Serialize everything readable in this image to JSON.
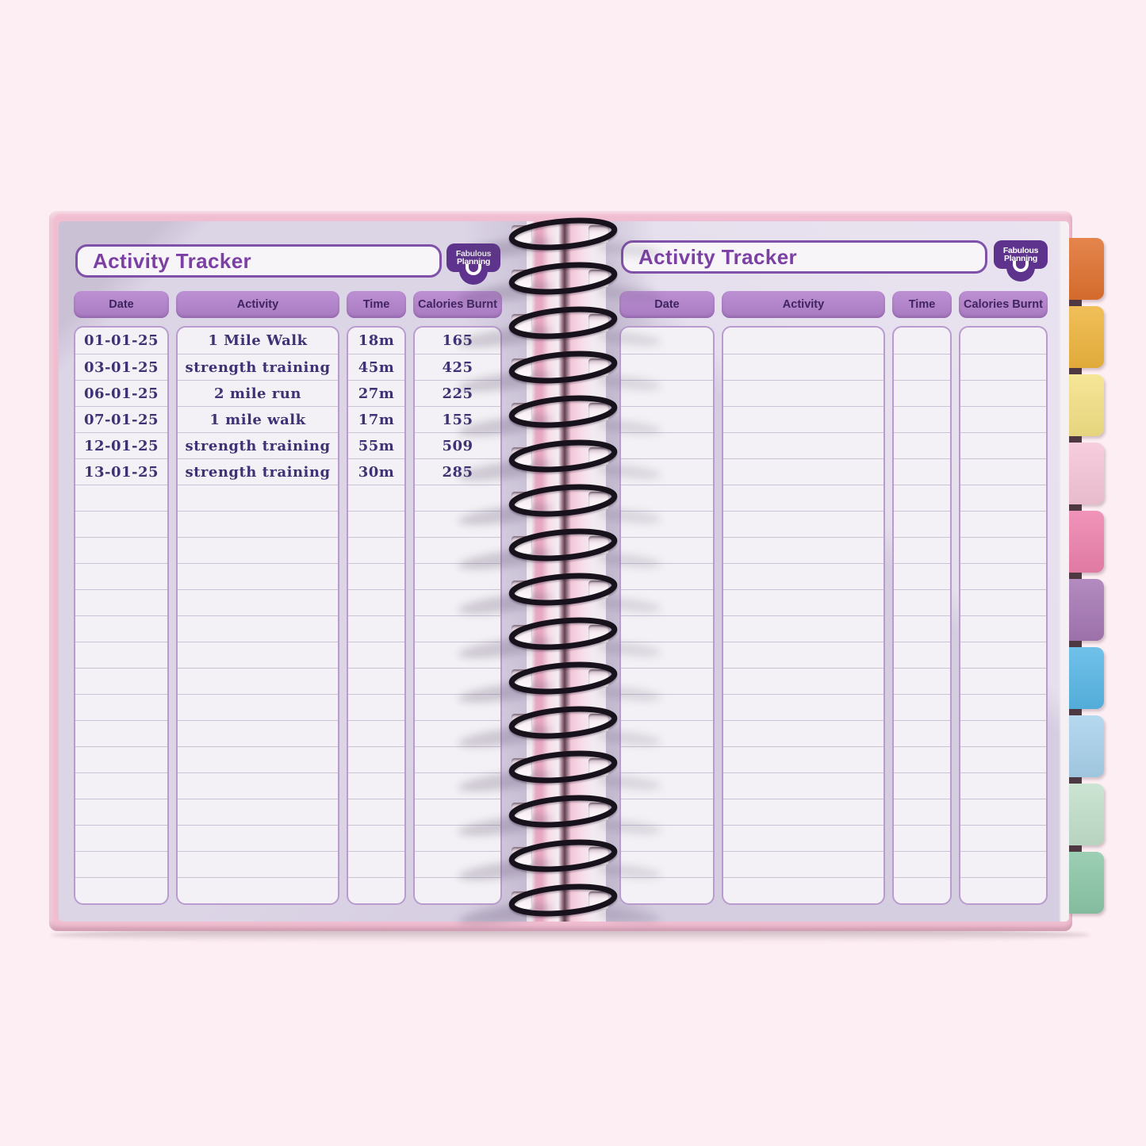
{
  "background_color": "#fdeef3",
  "brand": {
    "name_line1": "Fabulous",
    "name_line2": "Planning",
    "badge_color": "#5e338d"
  },
  "left_page": {
    "title": "Activity Tracker",
    "columns": [
      "Date",
      "Activity",
      "Time",
      "Calories Burnt"
    ],
    "row_count": 22,
    "entries": [
      {
        "date": "01-01-25",
        "activity": "1 Mile Walk",
        "time": "18m",
        "calories": "165"
      },
      {
        "date": "03-01-25",
        "activity": "strength training",
        "time": "45m",
        "calories": "425"
      },
      {
        "date": "06-01-25",
        "activity": "2 mile run",
        "time": "27m",
        "calories": "225"
      },
      {
        "date": "07-01-25",
        "activity": "1 mile walk",
        "time": "17m",
        "calories": "155"
      },
      {
        "date": "12-01-25",
        "activity": "strength training",
        "time": "55m",
        "calories": "509"
      },
      {
        "date": "13-01-25",
        "activity": "strength training",
        "time": "30m",
        "calories": "285"
      }
    ]
  },
  "right_page": {
    "title": "Activity Tracker",
    "columns": [
      "Date",
      "Activity",
      "Time",
      "Calories Burnt"
    ],
    "row_count": 22,
    "entries": []
  },
  "tabs": [
    {
      "name": "tab-orange",
      "color": "#e0712f"
    },
    {
      "name": "tab-gold",
      "color": "#eeb53e"
    },
    {
      "name": "tab-yellow",
      "color": "#f4e286"
    },
    {
      "name": "tab-pink-light",
      "color": "#f6c6d9"
    },
    {
      "name": "tab-pink",
      "color": "#ee82ad"
    },
    {
      "name": "tab-purple",
      "color": "#a678b5"
    },
    {
      "name": "tab-blue",
      "color": "#58b7e6"
    },
    {
      "name": "tab-blue-light",
      "color": "#a9d2ec"
    },
    {
      "name": "tab-mint",
      "color": "#c3e0cc"
    },
    {
      "name": "tab-green",
      "color": "#8cc7a8"
    }
  ],
  "colors": {
    "cover_pink": "#f1bed1",
    "page_lavender": "#d8d1e2",
    "accent_purple": "#7c3fa4",
    "pill_purple": "#b286cb",
    "ink": "#3e3274",
    "wire_black": "#17121b"
  }
}
